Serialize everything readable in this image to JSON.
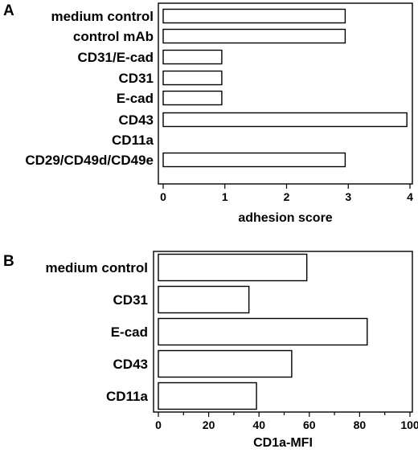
{
  "chart_data": [
    {
      "type": "bar",
      "orientation": "horizontal",
      "panel": "A",
      "categories": [
        "medium control",
        "control mAb",
        "CD31/E-cad",
        "CD31",
        "E-cad",
        "CD43",
        "CD11a",
        "CD29/CD49d/CD49e"
      ],
      "values": [
        2.95,
        2.95,
        0.95,
        0.95,
        0.95,
        3.95,
        0,
        2.95
      ],
      "xlabel": "adhesion score",
      "xlim": [
        0,
        4
      ],
      "xticks": [
        "0",
        "1",
        "2",
        "3",
        "4"
      ],
      "grid": false
    },
    {
      "type": "bar",
      "orientation": "horizontal",
      "panel": "B",
      "categories": [
        "medium control",
        "CD31",
        "E-cad",
        "CD43",
        "CD11a"
      ],
      "values": [
        59,
        36,
        83,
        53,
        39
      ],
      "xlabel": "CD1a-MFI",
      "xlim": [
        0,
        100
      ],
      "xticks": [
        "0",
        "20",
        "40",
        "60",
        "80",
        "100"
      ],
      "grid": false
    }
  ]
}
